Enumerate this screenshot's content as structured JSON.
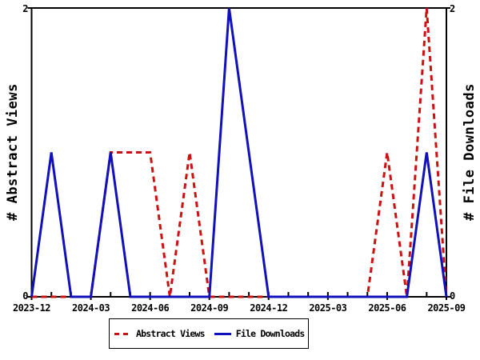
{
  "chart_data": {
    "type": "line",
    "title": "",
    "x": [
      "2023-12",
      "2024-01",
      "2024-02",
      "2024-03",
      "2024-04",
      "2024-05",
      "2024-06",
      "2024-07",
      "2024-08",
      "2024-09",
      "2024-10",
      "2024-11",
      "2024-12",
      "2025-01",
      "2025-02",
      "2025-03",
      "2025-04",
      "2025-05",
      "2025-06",
      "2025-07",
      "2025-08",
      "2025-09"
    ],
    "x_labeled_ticks": [
      "2023-12",
      "2024-03",
      "2024-06",
      "2024-09",
      "2024-12",
      "2025-03",
      "2025-06",
      "2025-09"
    ],
    "ylim": [
      0,
      2
    ],
    "y_tick_values": [
      0,
      2
    ],
    "y_tick_labels": [
      "0",
      "2"
    ],
    "ylabel_left": "# Abstract Views",
    "ylabel_right": "# File Downloads",
    "grid": false,
    "legend_position": "bottom-center",
    "colors": {
      "background": "#ffffff",
      "axis": "#000000",
      "text": "#000000"
    },
    "series": [
      {
        "name": "Abstract Views",
        "style": "dashed",
        "color": "#cc1111",
        "values": [
          0,
          0,
          0,
          0,
          1,
          1,
          1,
          0,
          1,
          0,
          0,
          0,
          0,
          0,
          0,
          0,
          0,
          0,
          1,
          0,
          2,
          0
        ]
      },
      {
        "name": "File Downloads",
        "style": "solid",
        "color": "#1111bb",
        "values": [
          0,
          1,
          0,
          0,
          1,
          0,
          0,
          0,
          0,
          0,
          2,
          1,
          0,
          0,
          0,
          0,
          0,
          0,
          0,
          0,
          1,
          0
        ]
      }
    ]
  }
}
